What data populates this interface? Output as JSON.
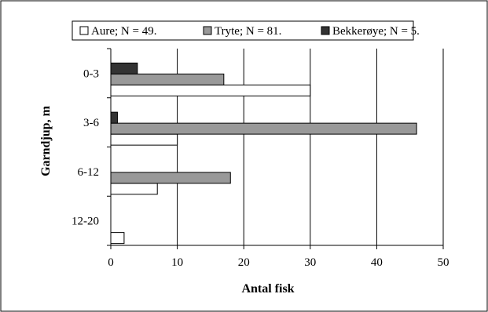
{
  "chart_data": {
    "type": "bar",
    "orientation": "horizontal",
    "categories": [
      "0-3",
      "3-6",
      "6-12",
      "12-20"
    ],
    "series": [
      {
        "name": "Aure; N =  49.",
        "color": "#ffffff",
        "values": [
          30,
          10,
          7,
          2
        ]
      },
      {
        "name": "Tryte; N =  81.",
        "color": "#999999",
        "values": [
          17,
          46,
          18,
          0
        ]
      },
      {
        "name": "Bekkerøye; N =  5.",
        "color": "#333333",
        "values": [
          4,
          1,
          0,
          0
        ]
      }
    ],
    "xlabel": "Antal fisk",
    "ylabel": "Garndjup, m",
    "xlim": [
      0,
      50
    ],
    "xticks": [
      0,
      10,
      20,
      30,
      40,
      50
    ],
    "grid": "vertical",
    "legend_position": "top"
  }
}
